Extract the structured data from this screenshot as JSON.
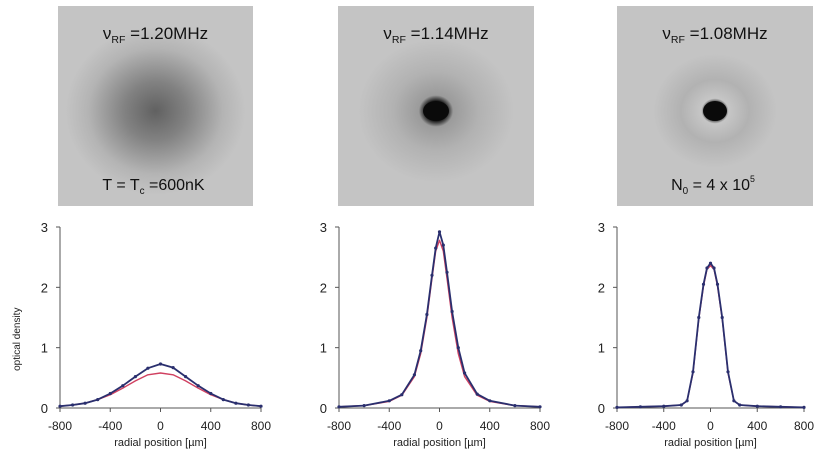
{
  "chart_data": [
    {
      "type": "line",
      "image_label_top": {
        "main": "ν",
        "sub": "RF",
        "rest": " =1.20MHz"
      },
      "image_label_bottom": {
        "main": "T = T",
        "sub": "c",
        "rest": " =600nK"
      },
      "image_profile": {
        "peak_gray": 0.38,
        "core": false
      },
      "ylabel": "optical density",
      "xlabel": "radial position [µm]",
      "xlim": [
        -800,
        800
      ],
      "ylim": [
        0,
        3
      ],
      "xticks": [
        "-800",
        "-400",
        "0",
        "400",
        "800"
      ],
      "yticks": [
        "0",
        "1",
        "2",
        "3"
      ],
      "series": [
        {
          "kind": "data",
          "color": "#2a2f6e",
          "x": [
            -800,
            -700,
            -600,
            -500,
            -400,
            -300,
            -200,
            -100,
            0,
            100,
            200,
            300,
            400,
            500,
            600,
            700,
            800
          ],
          "y": [
            0.03,
            0.05,
            0.08,
            0.14,
            0.24,
            0.37,
            0.52,
            0.66,
            0.73,
            0.67,
            0.52,
            0.37,
            0.24,
            0.14,
            0.08,
            0.05,
            0.03
          ]
        },
        {
          "kind": "fit",
          "color": "#d04060",
          "x": [
            -800,
            -700,
            -600,
            -500,
            -400,
            -300,
            -200,
            -100,
            0,
            100,
            200,
            300,
            400,
            500,
            600,
            700,
            800
          ],
          "y": [
            0.03,
            0.05,
            0.08,
            0.14,
            0.22,
            0.33,
            0.45,
            0.55,
            0.58,
            0.55,
            0.45,
            0.33,
            0.22,
            0.14,
            0.08,
            0.05,
            0.03
          ]
        }
      ]
    },
    {
      "type": "line",
      "image_label_top": {
        "main": "ν",
        "sub": "RF",
        "rest": " =1.14MHz"
      },
      "image_label_bottom": null,
      "image_profile": {
        "peak_gray": 0.45,
        "core": true
      },
      "ylabel": "",
      "xlabel": "radial position [µm]",
      "xlim": [
        -800,
        800
      ],
      "ylim": [
        0,
        3
      ],
      "xticks": [
        "-800",
        "-400",
        "0",
        "400",
        "800"
      ],
      "yticks": [
        "0",
        "1",
        "2",
        "3"
      ],
      "series": [
        {
          "kind": "data",
          "color": "#2a2f6e",
          "x": [
            -800,
            -600,
            -400,
            -300,
            -200,
            -150,
            -100,
            -60,
            -30,
            0,
            30,
            60,
            100,
            150,
            200,
            300,
            400,
            600,
            800
          ],
          "y": [
            0.02,
            0.04,
            0.12,
            0.22,
            0.55,
            0.95,
            1.55,
            2.2,
            2.65,
            2.92,
            2.7,
            2.25,
            1.6,
            1.0,
            0.58,
            0.23,
            0.12,
            0.04,
            0.02
          ]
        },
        {
          "kind": "fit",
          "color": "#d04060",
          "x": [
            -800,
            -600,
            -400,
            -300,
            -200,
            -150,
            -100,
            -60,
            -30,
            0,
            30,
            60,
            100,
            150,
            200,
            300,
            400,
            600,
            800
          ],
          "y": [
            0.02,
            0.04,
            0.11,
            0.21,
            0.52,
            0.9,
            1.5,
            2.15,
            2.6,
            2.78,
            2.6,
            2.15,
            1.5,
            0.9,
            0.52,
            0.21,
            0.11,
            0.04,
            0.02
          ]
        }
      ]
    },
    {
      "type": "line",
      "image_label_top": {
        "main": "ν",
        "sub": "RF",
        "rest": " =1.08MHz"
      },
      "image_label_bottom": {
        "main": "N",
        "sub": "0",
        "rest": " = 4 x 10",
        "sup": "5"
      },
      "image_profile": {
        "peak_gray": 0.62,
        "core": true
      },
      "ylabel": "",
      "xlabel": "radial position [µm]",
      "xlim": [
        -800,
        800
      ],
      "ylim": [
        0,
        3
      ],
      "xticks": [
        "-800",
        "-400",
        "0",
        "400",
        "800"
      ],
      "yticks": [
        "0",
        "1",
        "2",
        "3"
      ],
      "series": [
        {
          "kind": "data",
          "color": "#2a2f6e",
          "x": [
            -800,
            -600,
            -400,
            -250,
            -200,
            -150,
            -100,
            -60,
            -30,
            0,
            30,
            60,
            100,
            150,
            200,
            250,
            400,
            600,
            800
          ],
          "y": [
            0.01,
            0.02,
            0.03,
            0.05,
            0.12,
            0.6,
            1.5,
            2.05,
            2.32,
            2.4,
            2.32,
            2.05,
            1.5,
            0.6,
            0.12,
            0.05,
            0.03,
            0.02,
            0.01
          ]
        },
        {
          "kind": "fit",
          "color": "#d04060",
          "x": [
            -800,
            -600,
            -400,
            -250,
            -200,
            -150,
            -100,
            -60,
            -30,
            0,
            30,
            60,
            100,
            150,
            200,
            250,
            400,
            600,
            800
          ],
          "y": [
            0.01,
            0.02,
            0.03,
            0.05,
            0.12,
            0.58,
            1.48,
            2.02,
            2.3,
            2.36,
            2.3,
            2.02,
            1.48,
            0.58,
            0.12,
            0.05,
            0.03,
            0.02,
            0.01
          ]
        }
      ]
    }
  ]
}
